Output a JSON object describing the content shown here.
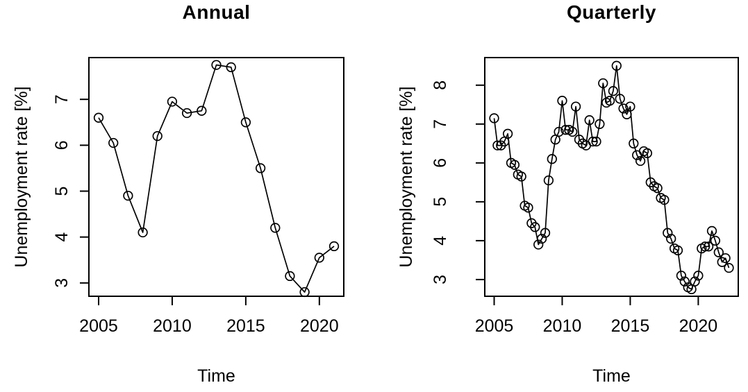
{
  "chart_data": [
    {
      "type": "line",
      "id": "annual",
      "title": "Annual",
      "xlabel": "Time",
      "ylabel": "Unemployment rate [%]",
      "marker": "open-circle",
      "line_color": "#000000",
      "background": "#ffffff",
      "grid": false,
      "legend": "none",
      "x_ticks": [
        2005,
        2010,
        2015,
        2020
      ],
      "y_ticks": [
        3,
        4,
        5,
        6,
        7
      ],
      "xlim": [
        2004.34,
        2021.66
      ],
      "ylim": [
        2.71,
        7.91
      ],
      "x": [
        2005,
        2006,
        2007,
        2008,
        2009,
        2010,
        2011,
        2012,
        2013,
        2014,
        2015,
        2016,
        2017,
        2018,
        2019,
        2020,
        2021
      ],
      "values": [
        6.6,
        6.05,
        4.9,
        4.1,
        6.2,
        6.95,
        6.7,
        6.75,
        7.75,
        7.7,
        6.5,
        5.5,
        4.2,
        3.15,
        2.8,
        3.55,
        3.8
      ]
    },
    {
      "type": "line",
      "id": "quarterly",
      "title": "Quarterly",
      "xlabel": "Time",
      "ylabel": "Unemployment rate [%]",
      "marker": "open-circle",
      "line_color": "#000000",
      "background": "#ffffff",
      "grid": false,
      "legend": "none",
      "x_ticks": [
        2005,
        2010,
        2015,
        2020
      ],
      "y_ticks": [
        3,
        4,
        5,
        6,
        7,
        8
      ],
      "xlim": [
        2004.31,
        2022.94
      ],
      "ylim": [
        2.57,
        8.71
      ],
      "x": [
        2005.0,
        2005.25,
        2005.5,
        2005.75,
        2006.0,
        2006.25,
        2006.5,
        2006.75,
        2007.0,
        2007.25,
        2007.5,
        2007.75,
        2008.0,
        2008.25,
        2008.5,
        2008.75,
        2009.0,
        2009.25,
        2009.5,
        2009.75,
        2010.0,
        2010.25,
        2010.5,
        2010.75,
        2011.0,
        2011.25,
        2011.5,
        2011.75,
        2012.0,
        2012.25,
        2012.5,
        2012.75,
        2013.0,
        2013.25,
        2013.5,
        2013.75,
        2014.0,
        2014.25,
        2014.5,
        2014.75,
        2015.0,
        2015.25,
        2015.5,
        2015.75,
        2016.0,
        2016.25,
        2016.5,
        2016.75,
        2017.0,
        2017.25,
        2017.5,
        2017.75,
        2018.0,
        2018.25,
        2018.5,
        2018.75,
        2019.0,
        2019.25,
        2019.5,
        2019.75,
        2020.0,
        2020.25,
        2020.5,
        2020.75,
        2021.0,
        2021.25,
        2021.5,
        2021.75,
        2022.0,
        2022.25
      ],
      "values": [
        7.15,
        6.45,
        6.45,
        6.55,
        6.75,
        6.0,
        5.95,
        5.7,
        5.65,
        4.9,
        4.85,
        4.45,
        4.35,
        3.9,
        4.05,
        4.2,
        5.55,
        6.1,
        6.6,
        6.8,
        7.6,
        6.85,
        6.85,
        6.8,
        7.45,
        6.6,
        6.5,
        6.45,
        7.1,
        6.55,
        6.55,
        7.0,
        8.05,
        7.55,
        7.6,
        7.85,
        8.5,
        7.65,
        7.4,
        7.25,
        7.45,
        6.5,
        6.2,
        6.05,
        6.3,
        6.25,
        5.5,
        5.4,
        5.35,
        5.1,
        5.05,
        4.2,
        4.05,
        3.8,
        3.75,
        3.1,
        2.95,
        2.8,
        2.75,
        2.95,
        3.1,
        3.8,
        3.85,
        3.85,
        4.25,
        4.0,
        3.7,
        3.45,
        3.55,
        3.3
      ]
    }
  ]
}
